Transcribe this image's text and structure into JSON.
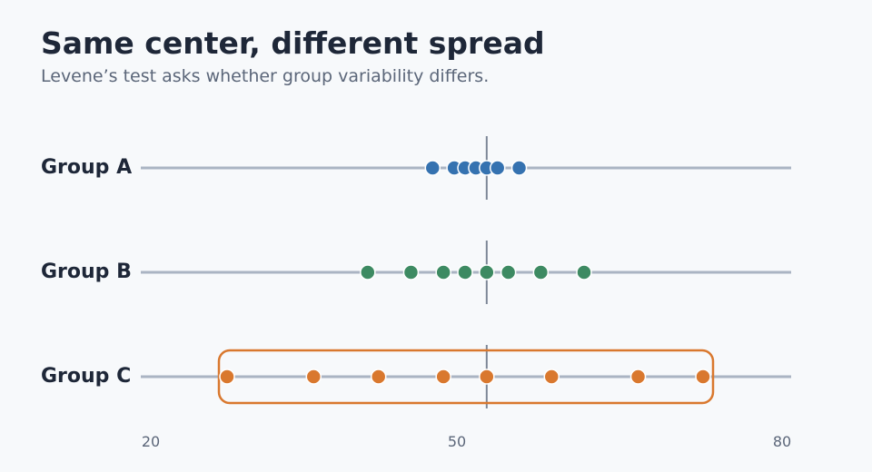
{
  "chart_data": {
    "type": "scatter",
    "title": "Same center, different spread",
    "subtitle": "Levene’s test asks whether group variability differs.",
    "xlim": [
      20,
      80
    ],
    "x_ticks": [
      20,
      50,
      80
    ],
    "center": 51,
    "series": [
      {
        "name": "Group A",
        "color": "#3572b0",
        "values": [
          46,
          48,
          49,
          50,
          51,
          52,
          54
        ]
      },
      {
        "name": "Group B",
        "color": "#3d8a62",
        "values": [
          40,
          44,
          47,
          49,
          51,
          53,
          56,
          60
        ]
      },
      {
        "name": "Group C",
        "color": "#d9782e",
        "values": [
          27,
          35,
          41,
          47,
          51,
          57,
          65,
          71
        ],
        "highlighted": true
      }
    ]
  }
}
